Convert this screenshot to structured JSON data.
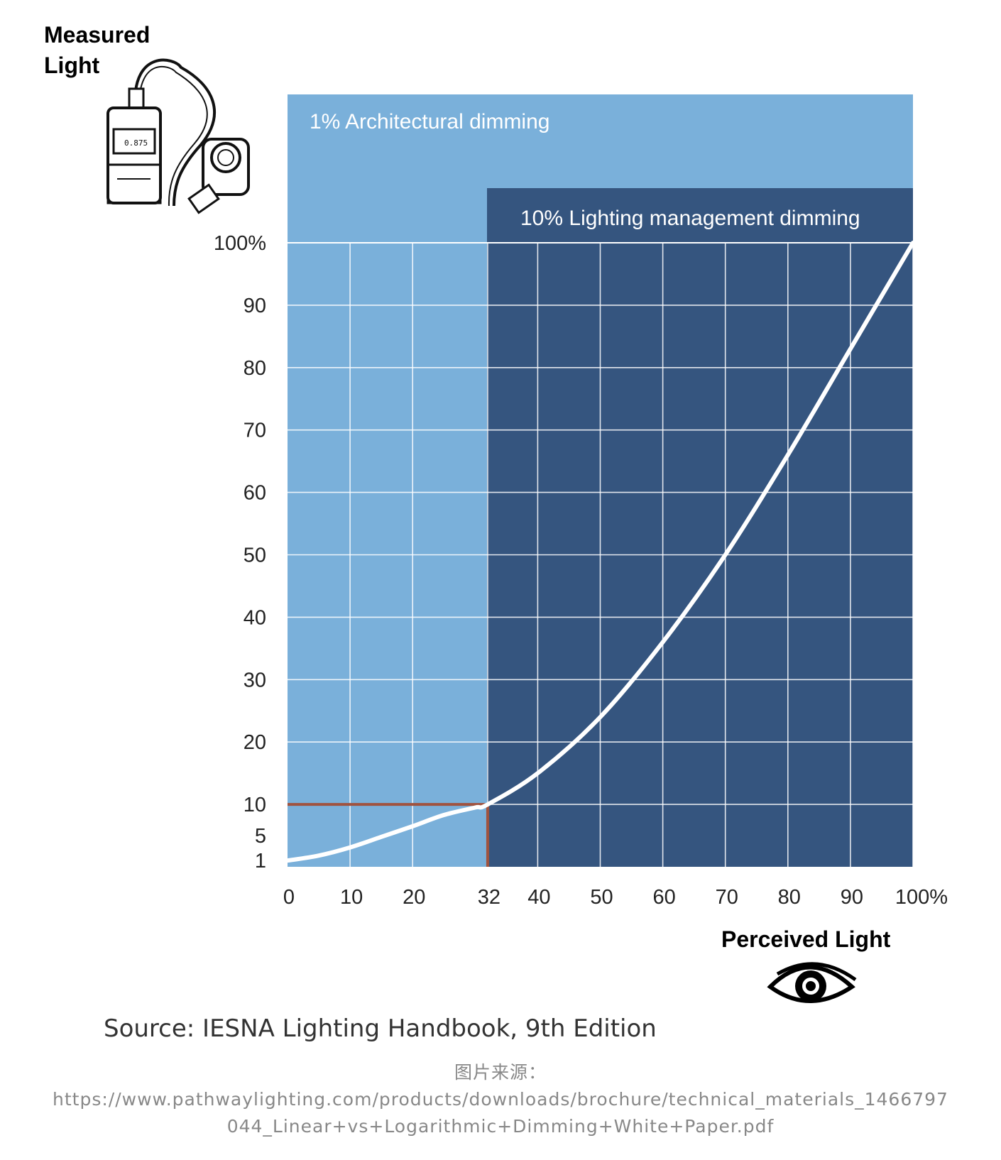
{
  "chart_data": {
    "type": "line",
    "ylabel": "Measured Light",
    "xlabel": "Perceived Light",
    "xlim": [
      0,
      100
    ],
    "ylim": [
      0,
      100
    ],
    "x_ticks": [
      "0",
      "10",
      "20",
      "32",
      "40",
      "50",
      "60",
      "70",
      "80",
      "90",
      "100%"
    ],
    "x_tick_values": [
      0,
      10,
      20,
      32,
      40,
      50,
      60,
      70,
      80,
      90,
      100
    ],
    "y_ticks": [
      "1",
      "5",
      "10",
      "20",
      "30",
      "40",
      "50",
      "60",
      "70",
      "80",
      "90",
      "100%"
    ],
    "y_tick_values": [
      1,
      5,
      10,
      20,
      30,
      40,
      50,
      60,
      70,
      80,
      90,
      100
    ],
    "grid": true,
    "regions": [
      {
        "label": "1% Architectural dimming",
        "x_range": [
          0,
          100
        ],
        "y_range": [
          0,
          100
        ],
        "color": "#7ab0da"
      },
      {
        "label": "10% Lighting management dimming",
        "x_range": [
          32,
          100
        ],
        "y_range": [
          0,
          100
        ],
        "color": "#35557f"
      }
    ],
    "series": [
      {
        "x": [
          0,
          5,
          10,
          15,
          20,
          25,
          30,
          32,
          40,
          50,
          60,
          70,
          80,
          90,
          100
        ],
        "y": [
          1,
          1.8,
          3.1,
          4.8,
          6.5,
          8.3,
          9.5,
          10,
          15,
          24,
          36,
          50,
          66,
          83,
          100
        ],
        "color": "#ffffff"
      }
    ],
    "marker_lines": {
      "x": 32,
      "y": 10,
      "color": "#a0533f"
    }
  },
  "source_text": "Source:  IESNA Lighting Handbook, 9th Edition",
  "credit_lines": [
    "图片来源：",
    "https://www.pathwaylighting.com/products/downloads/brochure/technical_materials_1466797",
    "044_Linear+vs+Logarithmic+Dimming+White+Paper.pdf"
  ],
  "meter_display": "0.875",
  "meter_icon": "light-meter-icon",
  "eye_icon": "eye-icon"
}
